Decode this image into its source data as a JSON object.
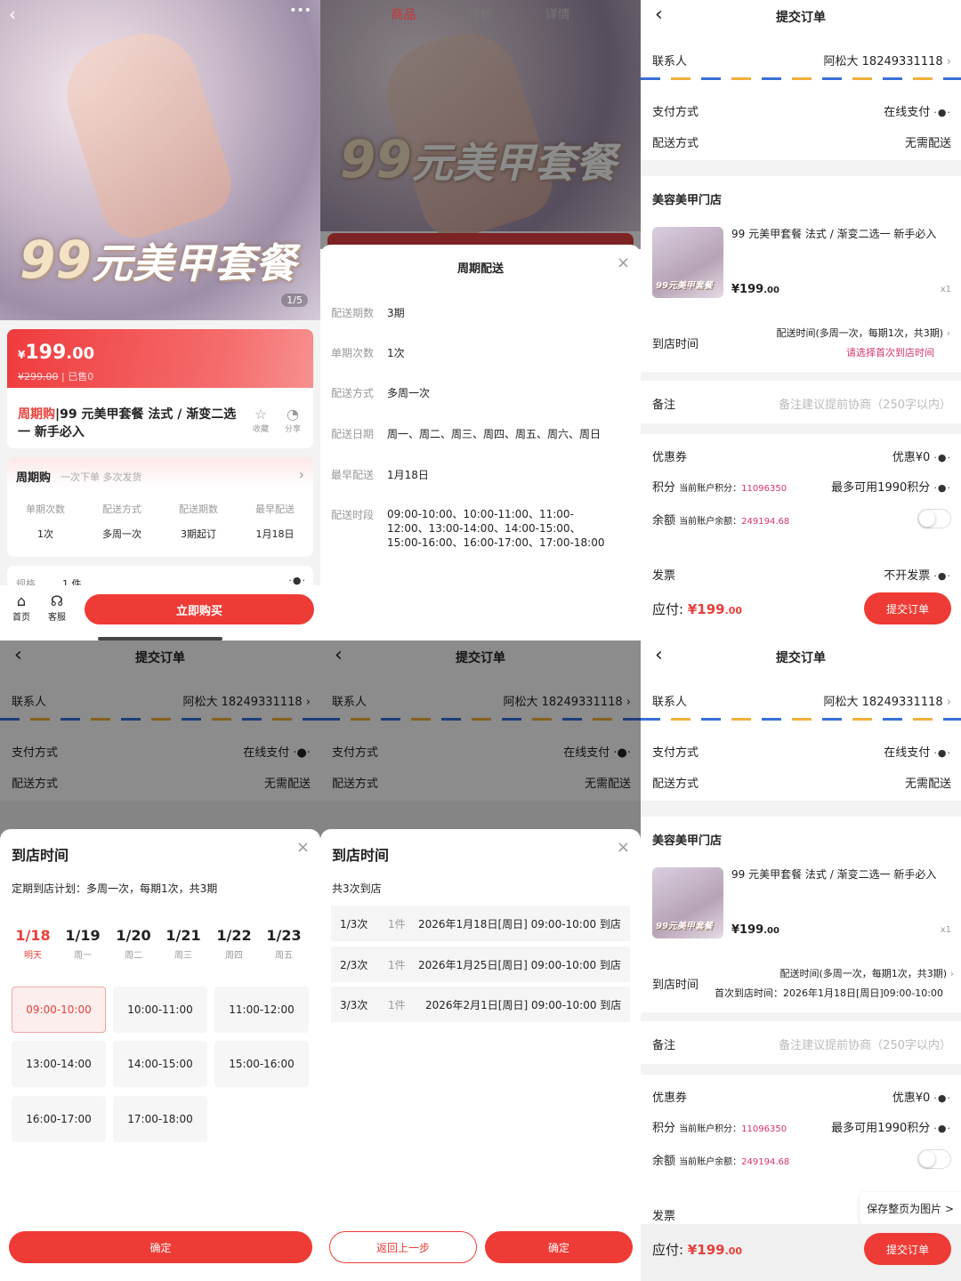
{
  "product_page": {
    "hero_title_num": "99",
    "hero_title_text": "元美甲套餐",
    "image_counter": "1/5",
    "price_symbol": "¥",
    "price_int": "199",
    "price_dec": ".00",
    "original_price": "¥299.00",
    "sold": "已售0",
    "tag": "周期购",
    "title": "99 元美甲套餐 法式 / 渐变二选一 新手必入",
    "favorite_label": "收藏",
    "share_label": "分享",
    "cycle_title": "周期购",
    "cycle_subtitle": "一次下单 多次发货",
    "cycle_stats": [
      {
        "label": "单期次数",
        "value": "1次"
      },
      {
        "label": "配送方式",
        "value": "多周一次"
      },
      {
        "label": "配送期数",
        "value": "3期起订"
      },
      {
        "label": "最早配送",
        "value": "1月18日"
      }
    ],
    "spec_label": "规格",
    "spec_value": "1 件",
    "nav_home": "首页",
    "nav_service": "客服",
    "buy_button": "立即购买"
  },
  "delivery_modal": {
    "tabs": [
      "商品",
      "评价",
      "详情"
    ],
    "title": "周期配送",
    "rows": [
      {
        "label": "配送期数",
        "value": "3期"
      },
      {
        "label": "单期次数",
        "value": "1次"
      },
      {
        "label": "配送方式",
        "value": "多周一次"
      },
      {
        "label": "配送日期",
        "value": "周一、周二、周三、周四、周五、周六、周日"
      },
      {
        "label": "最早配送",
        "value": "1月18日"
      },
      {
        "label": "配送时段",
        "value": "09:00-10:00、10:00-11:00、11:00-12:00、13:00-14:00、14:00-15:00、15:00-16:00、16:00-17:00、17:00-18:00"
      }
    ]
  },
  "order": {
    "title": "提交订单",
    "contact_label": "联系人",
    "contact_value": "阿松大 18249331118",
    "payment_label": "支付方式",
    "payment_value": "在线支付",
    "shipping_label": "配送方式",
    "shipping_value": "无需配送",
    "store": "美容美甲门店",
    "item_title": "99 元美甲套餐 法式 / 渐变二选一 新手必入",
    "item_price_int": "¥199",
    "item_price_dec": ".00",
    "item_qty": "x1",
    "arrival_label": "到店时间",
    "arrival_plan": "配送时间(多周一次，每期1次，共3期)",
    "arrival_prompt": "请选择首次到店时间",
    "arrival_first": "首次到店时间：2026年1月18日[周日]09:00-10:00",
    "note_label": "备注",
    "note_placeholder": "备注建议提前协商（250字以内）",
    "coupon_label": "优惠券",
    "coupon_value": "优惠¥0",
    "points_label": "积分",
    "points_sub": "当前账户积分：",
    "points_num": "11096350",
    "points_value": "最多可用1990积分",
    "balance_label": "余额",
    "balance_sub": "当前账户余额：",
    "balance_num": "249194.68",
    "balance_toggle_on": false,
    "invoice_label": "发票",
    "invoice_value": "不开发票",
    "total_label": "应付:",
    "total_int": "¥199",
    "total_dec": ".00",
    "submit": "提交订单",
    "save_page": "保存整页为图片 >"
  },
  "time_sheet": {
    "title": "到店时间",
    "plan": "定期到店计划：多周一次，每期1次，共3期",
    "days": [
      {
        "date": "1/18",
        "week": "明天"
      },
      {
        "date": "1/19",
        "week": "周一"
      },
      {
        "date": "1/20",
        "week": "周二"
      },
      {
        "date": "1/21",
        "week": "周三"
      },
      {
        "date": "1/22",
        "week": "周四"
      },
      {
        "date": "1/23",
        "week": "周五"
      }
    ],
    "slots": [
      "09:00-10:00",
      "10:00-11:00",
      "11:00-12:00",
      "13:00-14:00",
      "14:00-15:00",
      "15:00-16:00",
      "16:00-17:00",
      "17:00-18:00"
    ],
    "selected_slot": "09:00-10:00",
    "confirm": "确定"
  },
  "visits_sheet": {
    "title": "到店时间",
    "summary": "共3次到店",
    "visits": [
      {
        "idx": "1/3次",
        "qty": "1件",
        "text": "2026年1月18日[周日] 09:00-10:00 到店"
      },
      {
        "idx": "2/3次",
        "qty": "1件",
        "text": "2026年1月25日[周日] 09:00-10:00 到店"
      },
      {
        "idx": "3/3次",
        "qty": "1件",
        "text": "2026年2月1日[周日] 09:00-10:00 到店"
      }
    ],
    "back": "返回上一步",
    "confirm": "确定"
  },
  "colors": {
    "accent": "#ef3b35",
    "highlight": "#d6336c"
  }
}
